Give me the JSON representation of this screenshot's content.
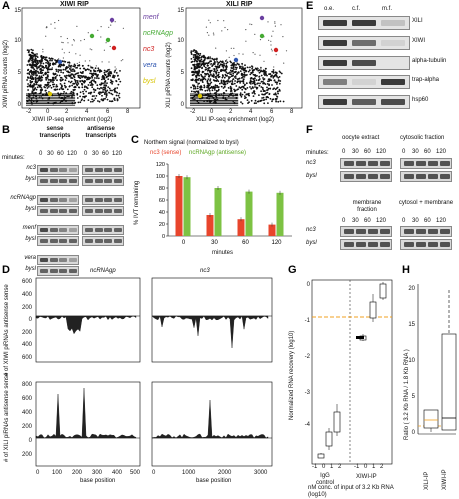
{
  "panels": {
    "A": {
      "letter": "A",
      "left_title": "XIWI RIP",
      "right_title": "XILI RIP",
      "left_ylabel": "XIWI piRNA counts (log2)",
      "right_ylabel": "XILI piRNA counts (log2)",
      "xlabel": "XIWI IP-seq enrichment (log2)",
      "right_xlabel": "XILI IP-seq enrichment (log2)",
      "legend": [
        {
          "label": "menf",
          "color": "#6a3fa0"
        },
        {
          "label": "ncRNAgp",
          "color": "#44aa33"
        },
        {
          "label": "nc3",
          "color": "#d02020"
        },
        {
          "label": "vera",
          "color": "#2f56b0"
        },
        {
          "label": "bysl",
          "color": "#d8c400"
        }
      ],
      "yticks": [
        "0",
        "5",
        "10",
        "15"
      ],
      "xticks": [
        "-2",
        "0",
        "2",
        "4",
        "6",
        "8"
      ]
    },
    "B": {
      "letter": "B",
      "sense": "sense transcripts",
      "antisense": "antisense transcripts",
      "minutes": "minutes:",
      "times": [
        "0",
        "30",
        "60",
        "120"
      ],
      "genes": [
        "nc3",
        "bysl",
        "ncRNAgp",
        "bysl",
        "menf",
        "bysl",
        "vera",
        "bysl"
      ]
    },
    "C": {
      "letter": "C",
      "title": "Northern signal (normalized to bysl)",
      "series_label_1": "nc3 (sense)",
      "series_label_2": "ncRNAgp (antisense)",
      "ylabel": "% IVT remaining",
      "xlabel": "minutes"
    },
    "D": {
      "letter": "D",
      "col1": "ncRNAgp",
      "col2": "nc3",
      "ylabel_top": "# of XIWI piRNAs antisense   sense",
      "ylabel_bottom": "# of XILI piRNAs antisense   sense",
      "xlabel": "base position",
      "top_ticks": [
        "600",
        "400",
        "200",
        "0",
        "200",
        "400",
        "600"
      ],
      "bottom_ticks": [
        "800",
        "600",
        "400",
        "200",
        "0",
        "200"
      ],
      "x1_ticks": [
        "0",
        "100",
        "200",
        "300",
        "400",
        "500"
      ],
      "x2_ticks": [
        "0",
        "1000",
        "2000",
        "3000"
      ]
    },
    "E": {
      "letter": "E",
      "cols": [
        "o.e.",
        "c.f.",
        "m.f."
      ],
      "rows": [
        "XILI",
        "XIWI",
        "alpha-tubulin",
        "trap-alpha",
        "hsp60"
      ]
    },
    "F": {
      "letter": "F",
      "oocyte": "oocyte extract",
      "cytosolic": "cytosolic fraction",
      "membrane": "membrane fraction",
      "cytosol_membrane": "cytosol + membrane",
      "minutes": "minutes:",
      "times": [
        "0",
        "30",
        "60",
        "120"
      ],
      "genes": [
        "nc3",
        "bysl"
      ]
    },
    "G": {
      "letter": "G",
      "ylabel": "Normalized RNA recovery (log10)",
      "yticks": [
        "0",
        "-1",
        "-2",
        "-3",
        "-4"
      ],
      "xticks": [
        "-1",
        "0",
        "1",
        "2"
      ],
      "igg": "IgG control",
      "xiwi": "XIWI-IP",
      "xlabel": "nM conc. of input of 3.2 Kb RNA (log10)"
    },
    "H": {
      "letter": "H",
      "ylabel": "Ratio ( 3.2 Kb RNA / 1.8 Kb RNA )",
      "yticks": [
        "0",
        "5",
        "10",
        "15",
        "20"
      ],
      "cats": [
        "XILI-IP",
        "XIWI-IP"
      ]
    }
  },
  "chart_data": [
    {
      "type": "bar",
      "title": "Northern signal (normalized to bysl)",
      "categories": [
        "0",
        "30",
        "60",
        "120"
      ],
      "xlabel": "minutes",
      "ylabel": "% IVT remaining",
      "ylim": [
        0,
        120
      ],
      "series": [
        {
          "name": "nc3 (sense)",
          "values": [
            100,
            35,
            28,
            19
          ],
          "color": "#e8452c"
        },
        {
          "name": "ncRNAgp (antisense)",
          "values": [
            98,
            80,
            74,
            72
          ],
          "color": "#7dc243"
        }
      ]
    }
  ]
}
